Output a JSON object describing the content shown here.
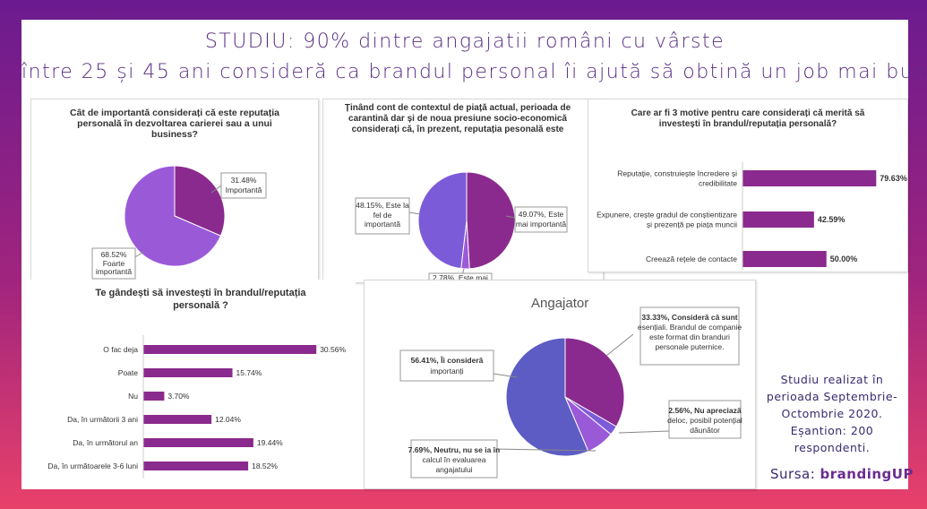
{
  "title": {
    "line1": "STUDIU: 90% dintre angajatii români cu vârste",
    "line2": "între 25 și 45 ani consideră ca brandul personal îi ajută să obtină un job mai bun"
  },
  "colors": {
    "purple_dark": "#8b2a8e",
    "purple_light": "#9a5ad8",
    "purple_blue": "#7b5bd8",
    "bar": "#8b2a8e",
    "slate_blue": "#5c5cc4"
  },
  "note": {
    "lines": [
      "Studiu realizat în",
      "perioada Septembrie-",
      "Octombrie 2020.",
      "Eșantion: 200",
      "respondenti."
    ],
    "source_label": "Sursa:",
    "source_brand": "brandingUP"
  },
  "chart_data": [
    {
      "type": "pie",
      "title": "Cât de importantă considerați că este reputația personală în dezvoltarea carierei sau a unui business?",
      "slices": [
        {
          "label": "Importantă",
          "value": 31.48,
          "display": "31.48%"
        },
        {
          "label": "Foarte importantă",
          "value": 68.52,
          "display": "68.52%"
        }
      ]
    },
    {
      "type": "pie",
      "title": "Ținând cont de contextul de piață actual, perioada de carantină dar și de noua presiune socio-economică considerați că, în prezent, reputația pesonală este",
      "slices": [
        {
          "label": "Este mai importantă",
          "value": 49.07,
          "display": "49.07%"
        },
        {
          "label": "Este mai puțin importantă",
          "value": 2.78,
          "display": "2.78%"
        },
        {
          "label": "Este la fel de importantă",
          "value": 48.15,
          "display": "48.15%"
        }
      ]
    },
    {
      "type": "bar",
      "orientation": "horizontal",
      "title": "Care ar fi 3 motive pentru care considerați că merită să investești în brandul/reputația personală?",
      "categories": [
        "Reputație, construiește încredere și credibilitate",
        "Expunere, crește gradul de conștientizare și prezență pe piața muncii",
        "Creează rețele de contacte"
      ],
      "values": [
        79.63,
        42.59,
        50.0
      ],
      "labels": [
        "79.63%",
        "42.59%",
        "50.00%"
      ],
      "xlim": [
        0,
        80
      ]
    },
    {
      "type": "bar",
      "orientation": "horizontal",
      "title": "Te gândești să investești în brandul/reputația personală ?",
      "categories": [
        "O fac deja",
        "Poate",
        "Nu",
        "Da, în următorii 3 ani",
        "Da, în următorul an",
        "Da, în următoarele 3-6 luni"
      ],
      "values": [
        30.56,
        15.74,
        3.7,
        12.04,
        19.44,
        18.52
      ],
      "labels": [
        "30.56%",
        "15.74%",
        "3.70%",
        "12.04%",
        "19.44%",
        "18.52%"
      ],
      "xlim": [
        0,
        31
      ]
    },
    {
      "type": "pie",
      "title": "Angajator",
      "slices": [
        {
          "label": "Consideră că sunt esențiali. Brandul de companie este format din branduri personale puternice.",
          "value": 33.33,
          "display": "33.33%"
        },
        {
          "label": "Nu apreciază deloc, posibil potențial dăunător",
          "value": 2.56,
          "display": "2.56%"
        },
        {
          "label": "Neutru, nu se ia în calcul în evaluarea angajatului",
          "value": 7.69,
          "display": "7.69%"
        },
        {
          "label": "Îi consideră importanți",
          "value": 56.41,
          "display": "56.41%"
        }
      ]
    }
  ]
}
